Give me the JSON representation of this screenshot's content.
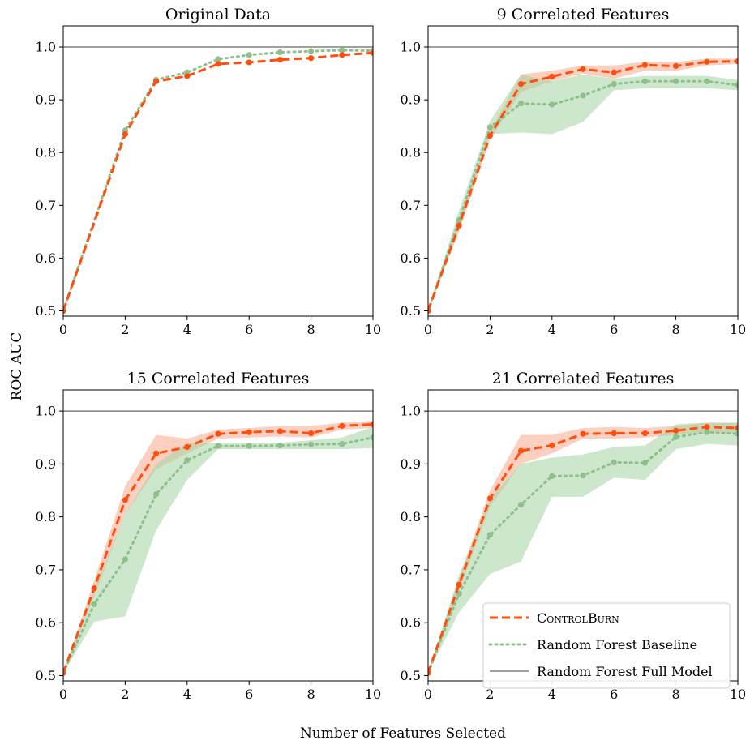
{
  "figure": {
    "xlabel": "Number of Features Selected",
    "ylabel": "ROC AUC"
  },
  "legend": {
    "placement": "lower-right of bottom-right panel",
    "entries": [
      {
        "label": "ControlBurn",
        "style": "dashed",
        "color": "#ff4f0f"
      },
      {
        "label": "Random Forest Baseline",
        "style": "dotted",
        "color": "#8fbf8c"
      },
      {
        "label": "Random Forest Full Model",
        "style": "solid",
        "color": "#808080"
      }
    ]
  },
  "colors": {
    "controlburn": "#ff4f0f",
    "controlburn_band": "#f8a98c",
    "baseline": "#8fbf8c",
    "baseline_band": "#a3d3a1",
    "full_model": "#808080"
  },
  "chart_data": [
    {
      "type": "line",
      "title": "Original Data",
      "xlim": [
        0,
        10
      ],
      "ylim": [
        0.49,
        1.04
      ],
      "xticks": [
        0,
        2,
        4,
        6,
        8,
        10
      ],
      "yticks": [
        0.5,
        0.6,
        0.7,
        0.8,
        0.9,
        1.0
      ],
      "xlabel": "",
      "ylabel": "",
      "full_model": 1.0,
      "x": [
        0,
        2,
        3,
        4,
        5,
        6,
        7,
        8,
        9,
        10
      ],
      "series": [
        {
          "name": "ControlBurn",
          "values": [
            0.5,
            0.835,
            0.935,
            0.945,
            0.968,
            0.971,
            0.976,
            0.979,
            0.985,
            0.989
          ],
          "lower": [
            0.5,
            0.835,
            0.935,
            0.945,
            0.968,
            0.971,
            0.976,
            0.979,
            0.985,
            0.989
          ],
          "upper": [
            0.5,
            0.835,
            0.935,
            0.945,
            0.968,
            0.971,
            0.976,
            0.979,
            0.985,
            0.989
          ]
        },
        {
          "name": "Random Forest Baseline",
          "values": [
            0.5,
            0.842,
            0.938,
            0.952,
            0.977,
            0.985,
            0.99,
            0.992,
            0.994,
            0.993
          ],
          "lower": [
            0.5,
            0.842,
            0.938,
            0.952,
            0.977,
            0.985,
            0.99,
            0.992,
            0.994,
            0.993
          ],
          "upper": [
            0.5,
            0.842,
            0.938,
            0.952,
            0.977,
            0.985,
            0.99,
            0.992,
            0.994,
            0.993
          ]
        }
      ]
    },
    {
      "type": "line",
      "title": "9 Correlated Features",
      "xlim": [
        0,
        10
      ],
      "ylim": [
        0.49,
        1.04
      ],
      "xticks": [
        0,
        2,
        4,
        6,
        8,
        10
      ],
      "yticks": [
        0.5,
        0.6,
        0.7,
        0.8,
        0.9,
        1.0
      ],
      "xlabel": "",
      "ylabel": "",
      "full_model": 1.0,
      "x": [
        0,
        1,
        2,
        3,
        4,
        5,
        6,
        7,
        8,
        9,
        10
      ],
      "series": [
        {
          "name": "ControlBurn",
          "values": [
            0.5,
            0.662,
            0.832,
            0.93,
            0.944,
            0.958,
            0.952,
            0.966,
            0.964,
            0.972,
            0.973
          ],
          "lower": [
            0.5,
            0.65,
            0.825,
            0.915,
            0.935,
            0.95,
            0.94,
            0.955,
            0.955,
            0.965,
            0.968
          ],
          "upper": [
            0.5,
            0.675,
            0.84,
            0.948,
            0.955,
            0.965,
            0.965,
            0.972,
            0.972,
            0.978,
            0.978
          ]
        },
        {
          "name": "Random Forest Baseline",
          "values": [
            0.5,
            0.672,
            0.848,
            0.893,
            0.891,
            0.908,
            0.93,
            0.935,
            0.935,
            0.935,
            0.928
          ],
          "lower": [
            0.5,
            0.655,
            0.835,
            0.838,
            0.835,
            0.858,
            0.918,
            0.922,
            0.922,
            0.922,
            0.918
          ],
          "upper": [
            0.5,
            0.69,
            0.86,
            0.948,
            0.935,
            0.948,
            0.94,
            0.945,
            0.945,
            0.945,
            0.938
          ]
        }
      ]
    },
    {
      "type": "line",
      "title": "15 Correlated Features",
      "xlim": [
        0,
        10
      ],
      "ylim": [
        0.49,
        1.04
      ],
      "xticks": [
        0,
        2,
        4,
        6,
        8,
        10
      ],
      "yticks": [
        0.5,
        0.6,
        0.7,
        0.8,
        0.9,
        1.0
      ],
      "xlabel": "",
      "ylabel": "",
      "full_model": 1.0,
      "x": [
        0,
        1,
        2,
        3,
        4,
        5,
        6,
        7,
        8,
        9,
        10
      ],
      "series": [
        {
          "name": "ControlBurn",
          "values": [
            0.505,
            0.665,
            0.832,
            0.92,
            0.932,
            0.957,
            0.96,
            0.962,
            0.958,
            0.972,
            0.975
          ],
          "lower": [
            0.505,
            0.65,
            0.805,
            0.89,
            0.92,
            0.948,
            0.95,
            0.952,
            0.95,
            0.965,
            0.968
          ],
          "upper": [
            0.505,
            0.68,
            0.858,
            0.955,
            0.948,
            0.965,
            0.968,
            0.972,
            0.972,
            0.978,
            0.982
          ]
        },
        {
          "name": "Random Forest Baseline",
          "values": [
            0.505,
            0.635,
            0.72,
            0.843,
            0.907,
            0.934,
            0.934,
            0.935,
            0.937,
            0.938,
            0.95
          ],
          "lower": [
            0.505,
            0.602,
            0.612,
            0.775,
            0.87,
            0.928,
            0.928,
            0.928,
            0.928,
            0.928,
            0.93
          ],
          "upper": [
            0.505,
            0.66,
            0.805,
            0.9,
            0.94,
            0.94,
            0.94,
            0.94,
            0.945,
            0.95,
            0.97
          ]
        }
      ]
    },
    {
      "type": "line",
      "title": "21 Correlated Features",
      "xlim": [
        0,
        10
      ],
      "ylim": [
        0.49,
        1.04
      ],
      "xticks": [
        0,
        2,
        4,
        6,
        8,
        10
      ],
      "yticks": [
        0.5,
        0.6,
        0.7,
        0.8,
        0.9,
        1.0
      ],
      "xlabel": "",
      "ylabel": "",
      "full_model": 1.0,
      "x": [
        0,
        1,
        2,
        3,
        4,
        5,
        6,
        7,
        8,
        9,
        10
      ],
      "series": [
        {
          "name": "ControlBurn",
          "values": [
            0.505,
            0.672,
            0.835,
            0.925,
            0.935,
            0.957,
            0.958,
            0.958,
            0.963,
            0.97,
            0.968
          ],
          "lower": [
            0.505,
            0.66,
            0.82,
            0.9,
            0.92,
            0.948,
            0.948,
            0.95,
            0.955,
            0.96,
            0.958
          ],
          "upper": [
            0.505,
            0.685,
            0.85,
            0.955,
            0.955,
            0.968,
            0.97,
            0.968,
            0.972,
            0.978,
            0.978
          ]
        },
        {
          "name": "Random Forest Baseline",
          "values": [
            0.505,
            0.655,
            0.766,
            0.823,
            0.877,
            0.878,
            0.903,
            0.902,
            0.951,
            0.96,
            0.957
          ],
          "lower": [
            0.505,
            0.62,
            0.692,
            0.716,
            0.838,
            0.838,
            0.874,
            0.87,
            0.928,
            0.938,
            0.935
          ],
          "upper": [
            0.505,
            0.69,
            0.835,
            0.9,
            0.912,
            0.918,
            0.932,
            0.935,
            0.975,
            0.978,
            0.978
          ]
        }
      ]
    }
  ]
}
